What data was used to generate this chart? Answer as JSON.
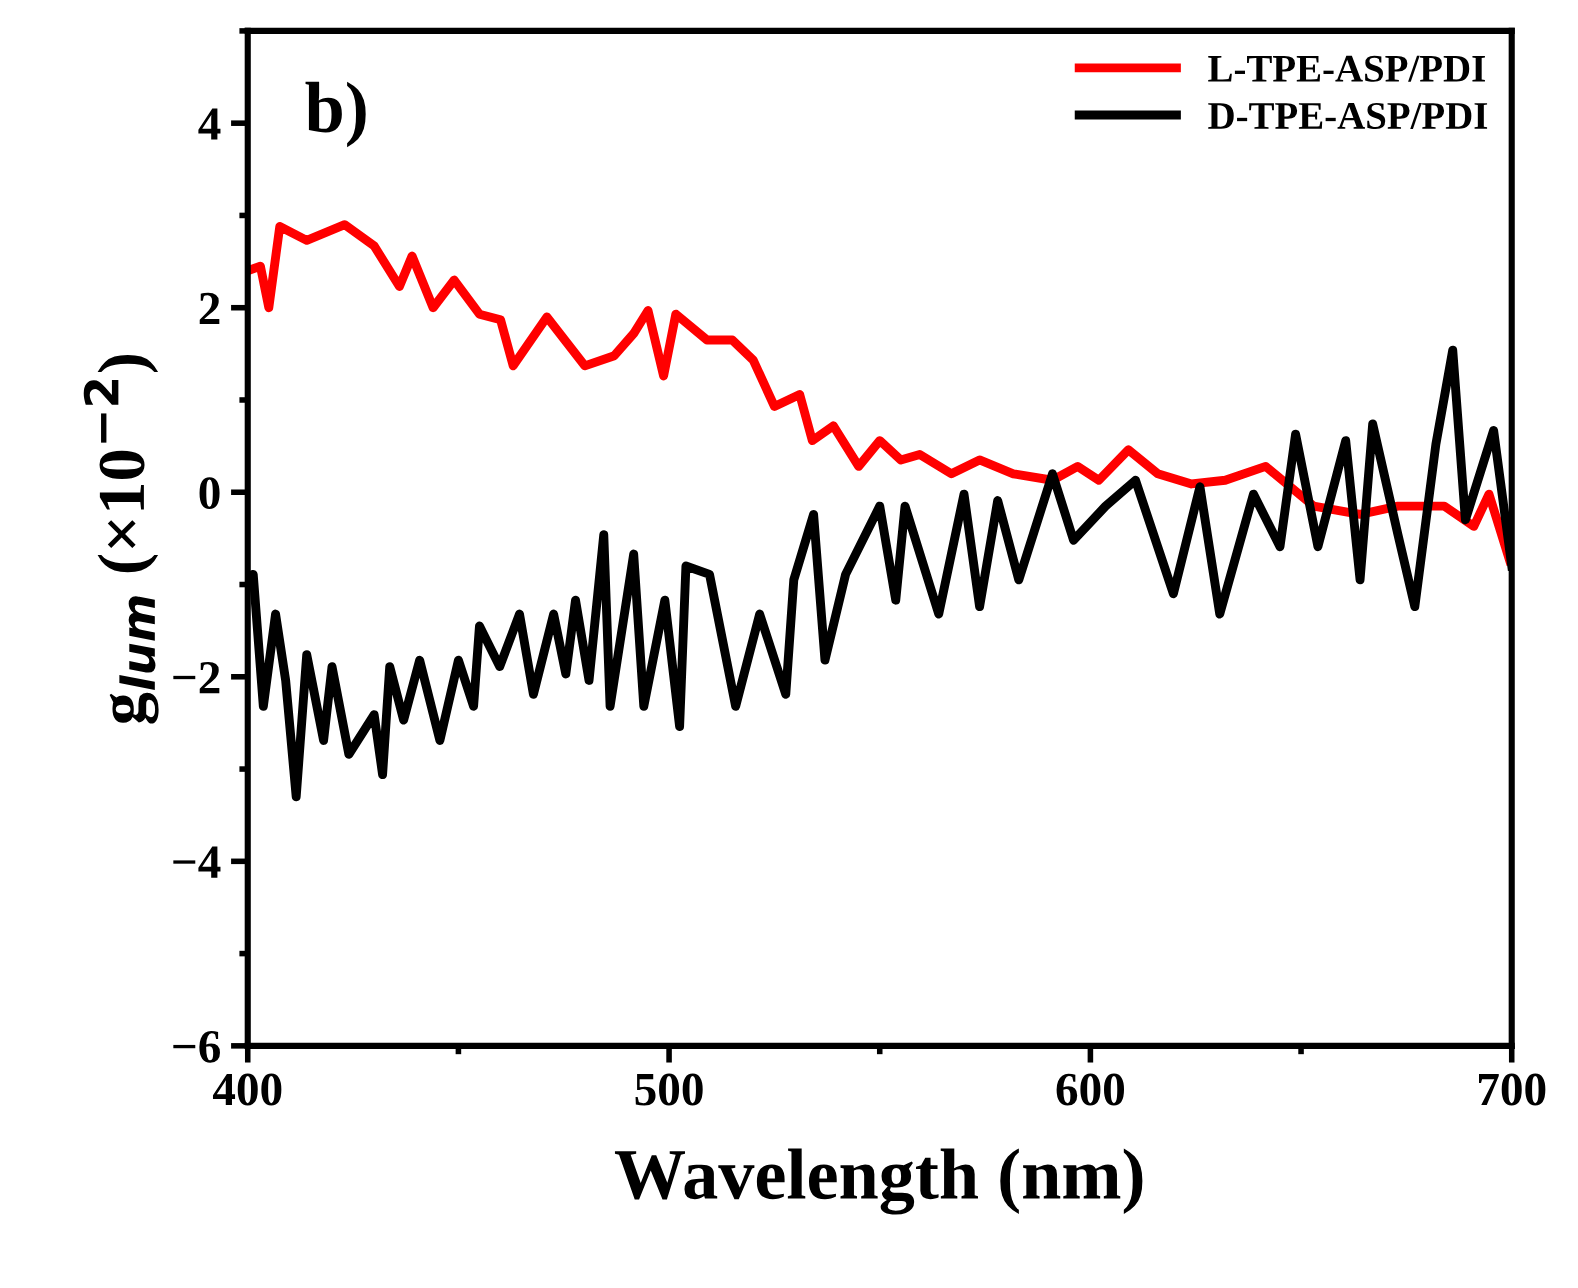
{
  "chart_data": {
    "type": "line",
    "xlabel": "Wavelength (nm)",
    "ylabel": "g$_{lum}$ (×10$^{−2}$)",
    "annotations": [
      "b)"
    ],
    "xlim": [
      400,
      700
    ],
    "ylim": [
      -6,
      5
    ],
    "xticks": [
      400,
      500,
      600,
      700
    ],
    "yticks": [
      -6,
      -4,
      -2,
      0,
      2,
      4
    ],
    "legend": "top right",
    "grid": false,
    "line_style": "solid",
    "marker": "none",
    "series": [
      {
        "name": "L-TPE-ASP/PDI",
        "color": "#ff0000",
        "x": [
          400,
          403,
          405,
          407.6,
          414,
          423,
          430,
          436,
          439,
          444,
          449,
          455,
          460,
          463,
          471,
          480,
          487,
          491.6,
          495,
          498.7,
          501.6,
          509,
          515,
          520,
          525,
          531,
          534,
          539,
          545,
          550,
          555,
          559.5,
          567,
          573.7,
          581.7,
          591,
          597,
          602,
          609,
          616,
          624,
          632,
          641.6,
          653,
          664,
          673,
          684,
          691,
          694.6,
          699.5
        ],
        "values": [
          2.4,
          2.45,
          2.0,
          2.88,
          2.73,
          2.9,
          2.67,
          2.23,
          2.56,
          2.0,
          2.3,
          1.93,
          1.87,
          1.37,
          1.9,
          1.37,
          1.48,
          1.72,
          1.97,
          1.26,
          1.93,
          1.65,
          1.65,
          1.43,
          0.93,
          1.06,
          0.56,
          0.72,
          0.28,
          0.56,
          0.35,
          0.41,
          0.2,
          0.35,
          0.2,
          0.13,
          0.28,
          0.13,
          0.46,
          0.2,
          0.09,
          0.13,
          0.28,
          -0.15,
          -0.24,
          -0.15,
          -0.15,
          -0.37,
          -0.02,
          -0.74
        ]
      },
      {
        "name": "D-TPE-ASP/PDI",
        "color": "#000000",
        "x": [
          400,
          401.3,
          403.7,
          406.6,
          409,
          411.5,
          414,
          418,
          420,
          424,
          430,
          432,
          433.7,
          437,
          440.8,
          445.6,
          450,
          453.6,
          455,
          459.8,
          464.5,
          467.8,
          472.6,
          475.5,
          477.8,
          481,
          484.5,
          486,
          491.6,
          494,
          499,
          502.5,
          504,
          509.6,
          515.8,
          521.5,
          527.7,
          529.6,
          534.3,
          537,
          541.9,
          550,
          553.8,
          556,
          564,
          570,
          573.7,
          578,
          583,
          591,
          596,
          603.6,
          610.7,
          619.7,
          626,
          630.7,
          638.7,
          645,
          648.7,
          654,
          660.6,
          664,
          667,
          673,
          677,
          682,
          686,
          689,
          695.7,
          700
        ],
        "values": [
          -1.0,
          -0.89,
          -2.32,
          -1.32,
          -2.04,
          -3.3,
          -1.76,
          -2.69,
          -1.89,
          -2.84,
          -2.41,
          -3.06,
          -1.89,
          -2.47,
          -1.82,
          -2.69,
          -1.82,
          -2.32,
          -1.45,
          -1.89,
          -1.32,
          -2.19,
          -1.32,
          -1.97,
          -1.17,
          -2.04,
          -0.46,
          -2.32,
          -0.67,
          -2.32,
          -1.17,
          -2.54,
          -0.8,
          -0.89,
          -2.32,
          -1.32,
          -2.19,
          -0.95,
          -0.24,
          -1.82,
          -0.89,
          -0.15,
          -1.17,
          -0.15,
          -1.32,
          -0.02,
          -1.24,
          -0.09,
          -0.95,
          0.2,
          -0.52,
          -0.15,
          0.13,
          -1.1,
          0.06,
          -1.32,
          -0.02,
          -0.59,
          0.63,
          -0.59,
          0.56,
          -0.95,
          0.74,
          -0.46,
          -1.24,
          0.52,
          1.54,
          -0.3,
          0.67,
          -0.8
        ]
      }
    ]
  }
}
